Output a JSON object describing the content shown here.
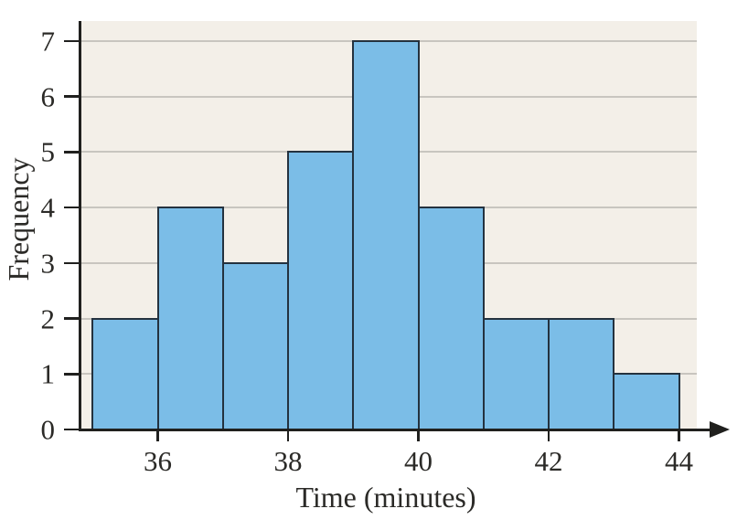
{
  "chart_data": {
    "type": "bar",
    "subtype": "histogram",
    "title": "",
    "xlabel": "Time (minutes)",
    "ylabel": "Frequency",
    "bin_edges": [
      35,
      36,
      37,
      38,
      39,
      40,
      41,
      42,
      43,
      44
    ],
    "frequencies": [
      2,
      4,
      3,
      5,
      7,
      4,
      2,
      2,
      1
    ],
    "x_ticks": [
      36,
      38,
      40,
      42,
      44
    ],
    "x_tick_labels": [
      "36",
      "38",
      "40",
      "42",
      "44"
    ],
    "y_ticks": [
      0,
      1,
      2,
      3,
      4,
      5,
      6,
      7
    ],
    "y_tick_labels": [
      "0",
      "1",
      "2",
      "3",
      "4",
      "5",
      "6",
      "7"
    ],
    "xlim": [
      34.8,
      44.3
    ],
    "ylim": [
      0,
      7.4
    ],
    "grid": "horizontal",
    "legend": "none",
    "colors": {
      "bar_fill": "#7bbde7",
      "bar_border": "#24323f",
      "plot_background": "#f3efe8",
      "gridline": "#c8c5bf",
      "axis": "#20201e",
      "text": "#2b2a27",
      "page_background": "#ffffff"
    }
  }
}
